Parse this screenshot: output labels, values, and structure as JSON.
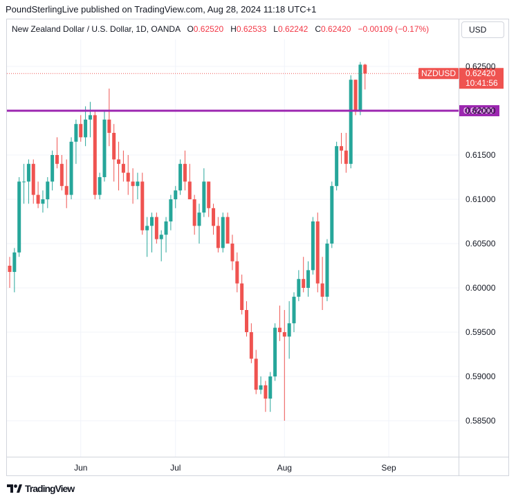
{
  "header": {
    "publisher": "PoundSterlingLive published on TradingView.com, Aug 28, 2024 11:18 UTC+1"
  },
  "symbol": {
    "title": "New Zealand Dollar / U.S. Dollar, 1D, OANDA",
    "open_label": "O",
    "open": "0.62520",
    "high_label": "H",
    "high": "0.62533",
    "low_label": "L",
    "low": "0.62242",
    "close_label": "C",
    "close": "0.62420",
    "change": "−0.00109 (−0.17%)"
  },
  "currency_button": "USD",
  "price_tag": {
    "symbol": "NZDUSD",
    "price": "0.62420",
    "countdown": "10:41:56"
  },
  "level_tag": "0.62000",
  "footer": {
    "brand": "TradingView"
  },
  "colors": {
    "up": "#26a69a",
    "down": "#ef5350",
    "level_line": "#9c27b0",
    "grid": "#f0f3fa"
  },
  "chart_data": {
    "type": "candlestick",
    "title": "New Zealand Dollar / U.S. Dollar, 1D, OANDA",
    "y_ticks": [
      "0.62500",
      "0.62000",
      "0.61500",
      "0.61000",
      "0.60500",
      "0.60000",
      "0.59500",
      "0.59000",
      "0.58500"
    ],
    "x_ticks": [
      {
        "label": "Jun",
        "index": 15
      },
      {
        "label": "Jul",
        "index": 35
      },
      {
        "label": "Aug",
        "index": 58
      },
      {
        "label": "Sep",
        "index": 80
      }
    ],
    "ylim": [
      0.5815,
      0.629
    ],
    "horizontal_line": 0.62,
    "last_price": 0.6242,
    "candles": [
      [
        0.6025,
        0.6035,
        0.6,
        0.6018
      ],
      [
        0.6018,
        0.6045,
        0.5995,
        0.604
      ],
      [
        0.604,
        0.6125,
        0.6035,
        0.612
      ],
      [
        0.612,
        0.614,
        0.6095,
        0.612
      ],
      [
        0.612,
        0.6145,
        0.6095,
        0.614
      ],
      [
        0.614,
        0.6145,
        0.6095,
        0.6105
      ],
      [
        0.6105,
        0.612,
        0.609,
        0.6095
      ],
      [
        0.6095,
        0.611,
        0.6085,
        0.61
      ],
      [
        0.61,
        0.6125,
        0.609,
        0.612
      ],
      [
        0.612,
        0.6155,
        0.611,
        0.615
      ],
      [
        0.615,
        0.617,
        0.6135,
        0.614
      ],
      [
        0.614,
        0.615,
        0.611,
        0.6115
      ],
      [
        0.6115,
        0.6145,
        0.609,
        0.6105
      ],
      [
        0.6105,
        0.617,
        0.61,
        0.6165
      ],
      [
        0.6165,
        0.619,
        0.614,
        0.6185
      ],
      [
        0.6185,
        0.6195,
        0.6165,
        0.617
      ],
      [
        0.617,
        0.6205,
        0.616,
        0.619
      ],
      [
        0.619,
        0.621,
        0.617,
        0.6195
      ],
      [
        0.6195,
        0.62,
        0.61,
        0.6105
      ],
      [
        0.6105,
        0.613,
        0.61,
        0.6125
      ],
      [
        0.6125,
        0.62,
        0.612,
        0.619
      ],
      [
        0.619,
        0.6225,
        0.616,
        0.6175
      ],
      [
        0.6175,
        0.6185,
        0.612,
        0.6145
      ],
      [
        0.6145,
        0.6165,
        0.611,
        0.614
      ],
      [
        0.614,
        0.6155,
        0.612,
        0.613
      ],
      [
        0.613,
        0.615,
        0.6105,
        0.612
      ],
      [
        0.612,
        0.6135,
        0.6095,
        0.6115
      ],
      [
        0.6115,
        0.613,
        0.61,
        0.612
      ],
      [
        0.612,
        0.613,
        0.606,
        0.6065
      ],
      [
        0.6065,
        0.608,
        0.6035,
        0.607
      ],
      [
        0.607,
        0.6085,
        0.604,
        0.608
      ],
      [
        0.608,
        0.6085,
        0.605,
        0.6055
      ],
      [
        0.6055,
        0.6065,
        0.603,
        0.606
      ],
      [
        0.606,
        0.608,
        0.604,
        0.6075
      ],
      [
        0.6075,
        0.6105,
        0.6065,
        0.61
      ],
      [
        0.61,
        0.6115,
        0.609,
        0.611
      ],
      [
        0.611,
        0.6145,
        0.6105,
        0.614
      ],
      [
        0.614,
        0.6155,
        0.611,
        0.612
      ],
      [
        0.612,
        0.614,
        0.61,
        0.61
      ],
      [
        0.61,
        0.6105,
        0.606,
        0.607
      ],
      [
        0.607,
        0.6095,
        0.605,
        0.6085
      ],
      [
        0.6085,
        0.6135,
        0.608,
        0.612
      ],
      [
        0.612,
        0.612,
        0.608,
        0.609
      ],
      [
        0.609,
        0.6095,
        0.606,
        0.607
      ],
      [
        0.607,
        0.608,
        0.604,
        0.6045
      ],
      [
        0.6045,
        0.6085,
        0.604,
        0.608
      ],
      [
        0.608,
        0.6085,
        0.605,
        0.605
      ],
      [
        0.605,
        0.606,
        0.602,
        0.603
      ],
      [
        0.603,
        0.604,
        0.5995,
        0.6005
      ],
      [
        0.6005,
        0.6015,
        0.597,
        0.5975
      ],
      [
        0.5975,
        0.5985,
        0.5945,
        0.595
      ],
      [
        0.595,
        0.596,
        0.5915,
        0.592
      ],
      [
        0.592,
        0.593,
        0.588,
        0.5885
      ],
      [
        0.5885,
        0.59,
        0.588,
        0.589
      ],
      [
        0.589,
        0.5895,
        0.586,
        0.5875
      ],
      [
        0.5875,
        0.5905,
        0.586,
        0.59
      ],
      [
        0.59,
        0.596,
        0.5895,
        0.5955
      ],
      [
        0.5955,
        0.598,
        0.594,
        0.595
      ],
      [
        0.595,
        0.5975,
        0.585,
        0.5945
      ],
      [
        0.5945,
        0.5985,
        0.592,
        0.596
      ],
      [
        0.596,
        0.5995,
        0.595,
        0.599
      ],
      [
        0.599,
        0.602,
        0.5985,
        0.601
      ],
      [
        0.601,
        0.6035,
        0.5995,
        0.6
      ],
      [
        0.6,
        0.603,
        0.599,
        0.602
      ],
      [
        0.602,
        0.608,
        0.6015,
        0.6075
      ],
      [
        0.6075,
        0.6085,
        0.5995,
        0.6005
      ],
      [
        0.6005,
        0.6035,
        0.5975,
        0.599
      ],
      [
        0.599,
        0.6055,
        0.5985,
        0.605
      ],
      [
        0.605,
        0.612,
        0.6045,
        0.6115
      ],
      [
        0.6115,
        0.6165,
        0.611,
        0.616
      ],
      [
        0.616,
        0.6175,
        0.614,
        0.6155
      ],
      [
        0.6155,
        0.6175,
        0.613,
        0.614
      ],
      [
        0.614,
        0.624,
        0.6135,
        0.6235
      ],
      [
        0.6235,
        0.6235,
        0.6195,
        0.62
      ],
      [
        0.62,
        0.6255,
        0.6195,
        0.6252
      ],
      [
        0.6252,
        0.6253,
        0.6224,
        0.6242
      ]
    ]
  }
}
